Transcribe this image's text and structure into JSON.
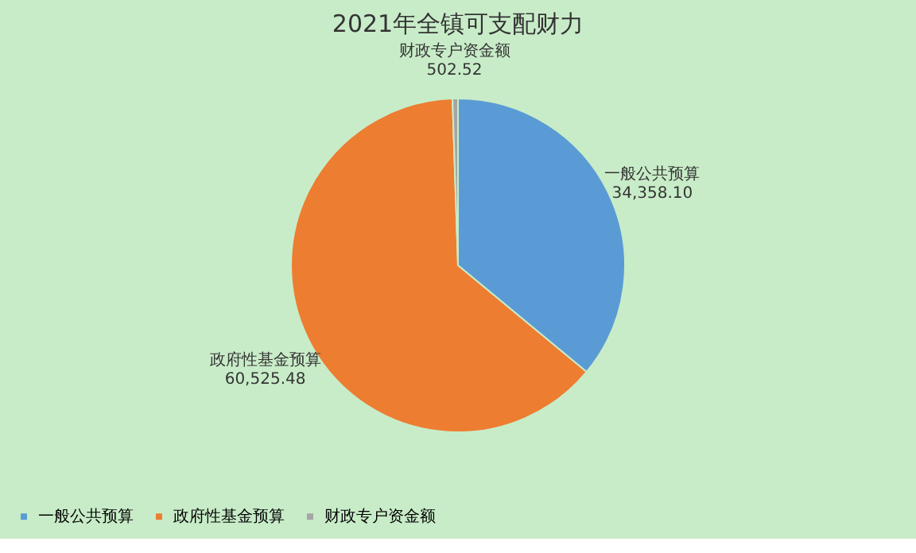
{
  "chart_data": {
    "type": "pie",
    "title": "2021年全镇可支配财力",
    "categories": [
      "一般公共预算",
      "政府性基金预算",
      "财政专户资金额"
    ],
    "values": [
      34358.1,
      60525.48,
      502.52
    ],
    "value_labels": [
      "34,358.10",
      "60,525.48",
      "502.52"
    ],
    "colors": [
      "#5b9bd5",
      "#ed7d31",
      "#a5a5a5"
    ],
    "legend": "bottom"
  }
}
